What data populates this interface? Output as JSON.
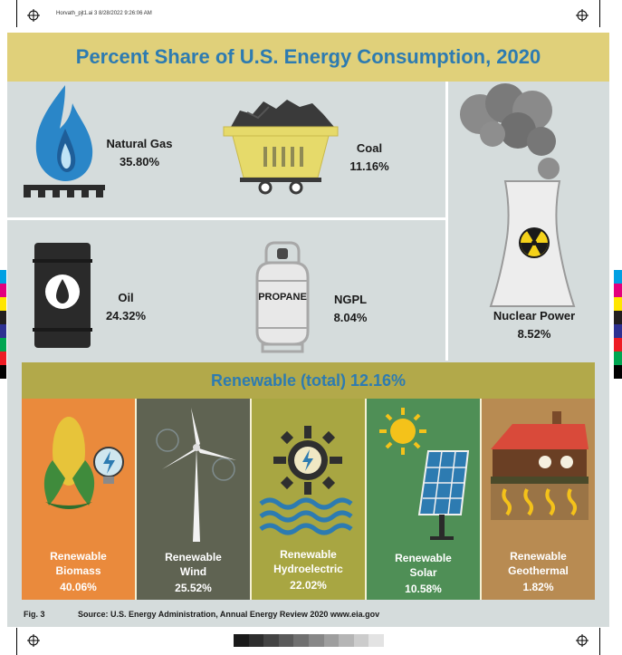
{
  "print": {
    "slug": "Horvath_pjt1.ai   3   8/28/2022   9:26:06 AM"
  },
  "title": "Percent Share of U.S. Energy Consumption, 2020",
  "sources": [
    {
      "name": "Natural Gas",
      "value": "35.80%",
      "percent": 35.8
    },
    {
      "name": "Coal",
      "value": "11.16%",
      "percent": 11.16
    },
    {
      "name": "Oil",
      "value": "24.32%",
      "percent": 24.32
    },
    {
      "name": "NGPL",
      "value": "8.04%",
      "percent": 8.04
    },
    {
      "name": "Nuclear Power",
      "value": "8.52%",
      "percent": 8.52
    }
  ],
  "propane_label": "PROPANE",
  "renewable": {
    "header": "Renewable (total) 12.16%",
    "items": [
      {
        "line1": "Renewable",
        "line2": "Biomass",
        "value": "40.06%",
        "color": "#ea8a3c"
      },
      {
        "line1": "Renewable",
        "line2": "Wind",
        "value": "25.52%",
        "color": "#5f6352"
      },
      {
        "line1": "Renewable",
        "line2": "Hydroelectric",
        "value": "22.02%",
        "color": "#a8a642"
      },
      {
        "line1": "Renewable",
        "line2": "Solar",
        "value": "10.58%",
        "color": "#4f8f56"
      },
      {
        "line1": "Renewable",
        "line2": "Geothermal",
        "value": "1.82%",
        "color": "#b88b52"
      }
    ]
  },
  "figure": {
    "label": "Fig. 3",
    "source": "Source: U.S. Energy Administration, Annual Energy Review 2020 www.eia.gov"
  },
  "colors": {
    "panel": "#d5dcdc",
    "title_band": "#e0d07a",
    "title_text": "#2d7bb1",
    "renewable_header_band": "#b2a94a"
  }
}
